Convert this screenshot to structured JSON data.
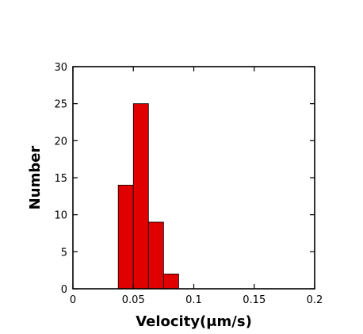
{
  "chart_data": {
    "type": "bar",
    "title": "",
    "xlabel": "Velocity(μm/s)",
    "ylabel": "Number",
    "xlim": [
      0,
      0.2
    ],
    "ylim": [
      0,
      30
    ],
    "xticks": [
      0,
      0.05,
      0.1,
      0.15,
      0.2
    ],
    "xtick_labels": [
      "0",
      "0.05",
      "0.1",
      "0.15",
      "0.2"
    ],
    "yticks": [
      0,
      5,
      10,
      15,
      20,
      25,
      30
    ],
    "ytick_labels": [
      "0",
      "5",
      "10",
      "15",
      "20",
      "25",
      "30"
    ],
    "bins": [
      {
        "start": 0.0375,
        "end": 0.05,
        "count": 14
      },
      {
        "start": 0.05,
        "end": 0.0625,
        "count": 25
      },
      {
        "start": 0.0625,
        "end": 0.075,
        "count": 9
      },
      {
        "start": 0.075,
        "end": 0.0875,
        "count": 2
      }
    ],
    "bar_color": "#e00000",
    "bar_edge_color": "#ffffff",
    "grid": false,
    "legend": "none"
  }
}
